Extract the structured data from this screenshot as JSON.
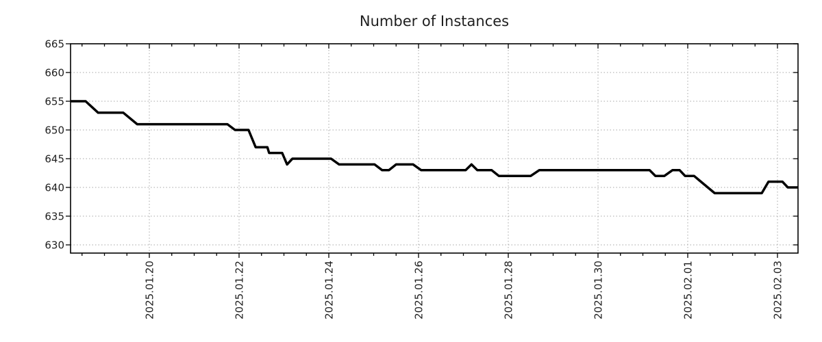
{
  "title": "Number of Instances",
  "chart_data": {
    "type": "line",
    "title": "Number of Instances",
    "grid": true,
    "legend": false,
    "x_axis": {
      "unit": "date",
      "t_unit": "days since 2025-01-18 00:00",
      "range_days": [
        0.24,
        16.46
      ],
      "major_tick_every_days": 2,
      "minor_tick_every_days": 0.5,
      "ticks": [
        {
          "t": 2,
          "label": "2025.01.20"
        },
        {
          "t": 4,
          "label": "2025.01.22"
        },
        {
          "t": 6,
          "label": "2025.01.24"
        },
        {
          "t": 8,
          "label": "2025.01.26"
        },
        {
          "t": 10,
          "label": "2025.01.28"
        },
        {
          "t": 12,
          "label": "2025.01.30"
        },
        {
          "t": 14,
          "label": "2025.02.01"
        },
        {
          "t": 16,
          "label": "2025.02.03"
        }
      ]
    },
    "y_axis": {
      "ticks": [
        665,
        660,
        655,
        650,
        645,
        640,
        635,
        630
      ],
      "range": [
        628.6,
        665
      ],
      "gridline_values": [
        660,
        655,
        650,
        645,
        640,
        635,
        630
      ]
    },
    "series": [
      {
        "name": "instances",
        "color": "#000000",
        "points": [
          [
            0.24,
            655
          ],
          [
            0.58,
            655
          ],
          [
            0.86,
            653
          ],
          [
            1.42,
            653
          ],
          [
            1.73,
            651
          ],
          [
            3.74,
            651
          ],
          [
            3.91,
            650
          ],
          [
            4.21,
            650
          ],
          [
            4.37,
            647
          ],
          [
            4.63,
            647
          ],
          [
            4.67,
            646
          ],
          [
            4.96,
            646
          ],
          [
            5.07,
            644
          ],
          [
            5.19,
            645
          ],
          [
            6.05,
            645
          ],
          [
            6.23,
            644
          ],
          [
            7.02,
            644
          ],
          [
            7.19,
            643
          ],
          [
            7.34,
            643
          ],
          [
            7.5,
            644
          ],
          [
            7.88,
            644
          ],
          [
            8.06,
            643
          ],
          [
            9.05,
            643
          ],
          [
            9.18,
            644
          ],
          [
            9.31,
            643
          ],
          [
            9.63,
            643
          ],
          [
            9.79,
            642
          ],
          [
            10.5,
            642
          ],
          [
            10.69,
            643
          ],
          [
            13.15,
            643
          ],
          [
            13.28,
            642
          ],
          [
            13.48,
            642
          ],
          [
            13.66,
            643
          ],
          [
            13.82,
            643
          ],
          [
            13.94,
            642
          ],
          [
            14.14,
            642
          ],
          [
            14.6,
            639
          ],
          [
            15.65,
            639
          ],
          [
            15.8,
            641
          ],
          [
            16.11,
            641
          ],
          [
            16.23,
            640
          ],
          [
            16.46,
            640
          ]
        ]
      }
    ],
    "colors": {
      "line": "#000000",
      "grid": "#a6a6a6",
      "axis": "#000000",
      "text": "#1f1f1f",
      "background": "#ffffff"
    }
  }
}
